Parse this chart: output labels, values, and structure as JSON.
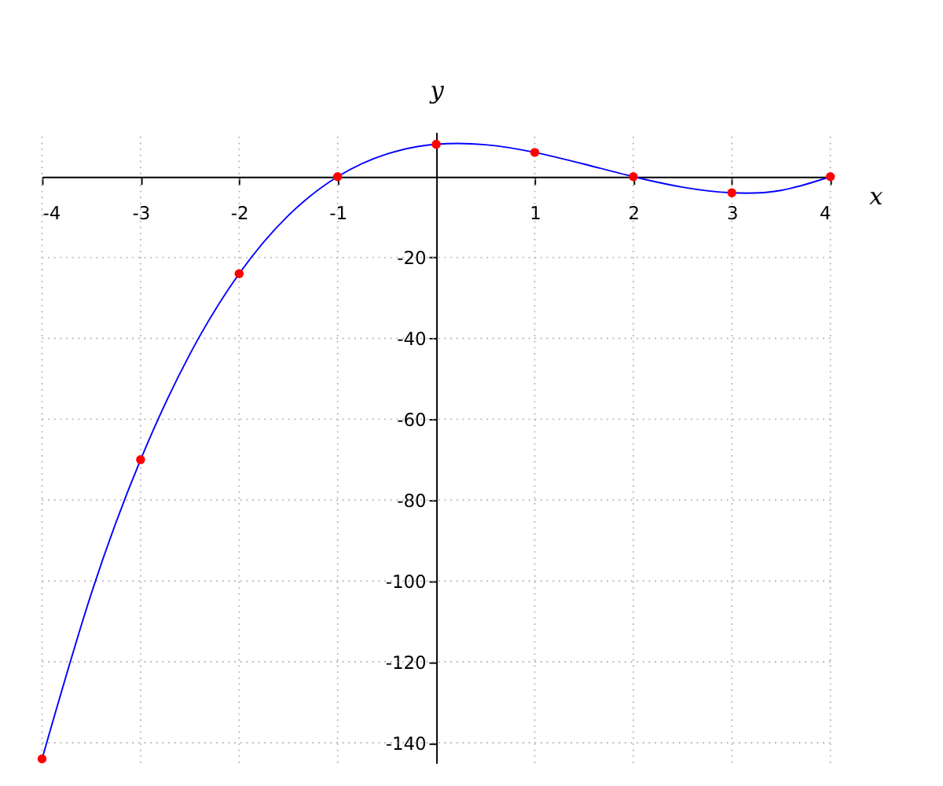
{
  "chart_data": {
    "type": "line",
    "xlabel": "x",
    "ylabel": "y",
    "xlim": [
      -4,
      4
    ],
    "ylim": [
      -145,
      11
    ],
    "xticks": [
      -4,
      -3,
      -2,
      -1,
      1,
      2,
      3,
      4
    ],
    "yticks": [
      -140,
      -120,
      -100,
      -80,
      -60,
      -40,
      -20
    ],
    "grid": true,
    "series": [
      {
        "color": "#0000ff",
        "marker": "none",
        "x": [
          -4,
          -3.5,
          -3,
          -2.5,
          -2,
          -1.5,
          -1,
          -0.5,
          0,
          0.5,
          1,
          1.5,
          2,
          2.5,
          3,
          3.5,
          4
        ],
        "values": [
          -144,
          -103.1,
          -70,
          -43.9,
          -24,
          -9.6,
          0,
          5.6,
          8,
          7.9,
          6,
          3.1,
          0,
          -2.6,
          -4,
          -3.4,
          0
        ]
      },
      {
        "type": "scatter",
        "color": "#ff0000",
        "marker": "circle",
        "x": [
          -4,
          -3,
          -2,
          -1,
          0,
          1,
          2,
          3,
          4
        ],
        "values": [
          -144,
          -70,
          -24,
          0,
          8,
          6,
          0,
          -4,
          0
        ]
      }
    ]
  }
}
